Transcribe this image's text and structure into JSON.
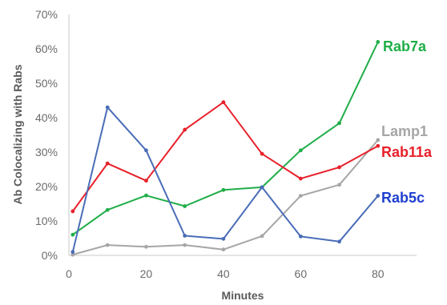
{
  "chart_data": {
    "type": "line",
    "title": "",
    "xlabel": "Minutes",
    "ylabel": "Ab Colocalizing with Rabs",
    "xlim": [
      0,
      90
    ],
    "ylim": [
      0,
      70
    ],
    "x_ticks": [
      "0",
      "20",
      "40",
      "60",
      "80"
    ],
    "y_ticks": [
      "0%",
      "10%",
      "20%",
      "30%",
      "40%",
      "50%",
      "60%",
      "70%"
    ],
    "grid": false,
    "legend": "inline labels at line ends",
    "series": [
      {
        "name": "Rab7a",
        "color": "#1fae48",
        "x": [
          1,
          10,
          20,
          30,
          40,
          50,
          60,
          70,
          80
        ],
        "values": [
          6,
          13.2,
          17.4,
          14.3,
          19,
          19.8,
          30.5,
          38.4,
          62
        ]
      },
      {
        "name": "Lamp1",
        "color": "#a6a6a6",
        "x": [
          1,
          10,
          20,
          30,
          40,
          50,
          60,
          70,
          80
        ],
        "values": [
          0.2,
          3,
          2.5,
          3,
          1.7,
          5.6,
          17.3,
          20.5,
          33.5
        ]
      },
      {
        "name": "Rab11a",
        "color": "#e8212b",
        "x": [
          1,
          10,
          20,
          30,
          40,
          50,
          60,
          70,
          80
        ],
        "values": [
          12.8,
          26.7,
          21.7,
          36.5,
          44.5,
          29.5,
          22.3,
          25.6,
          31.8
        ]
      },
      {
        "name": "Rab5c",
        "color": "#4a6db8",
        "x": [
          1,
          10,
          20,
          30,
          40,
          50,
          60,
          70,
          80
        ],
        "values": [
          1,
          43,
          30.5,
          5.7,
          4.8,
          19.8,
          5.5,
          4,
          17.3
        ]
      }
    ]
  },
  "colors": {
    "axis": "#c8c8c8",
    "tick_text": "#6b6b6b",
    "title_text": "#5a5a5a",
    "rab5c_label": "#1f3fd1"
  }
}
